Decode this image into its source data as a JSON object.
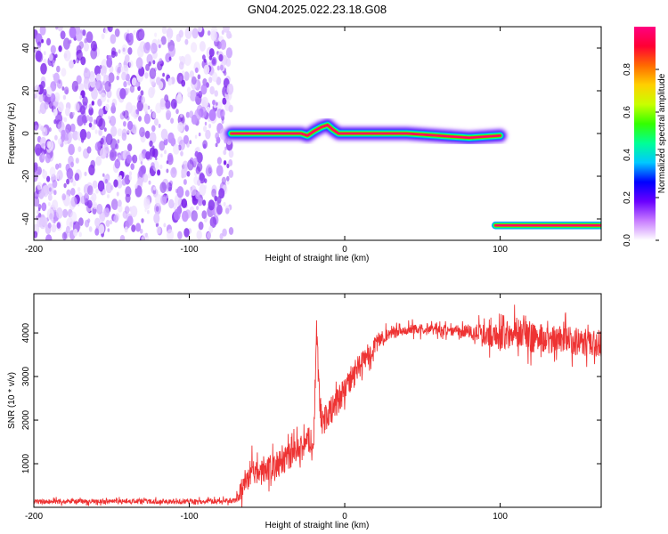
{
  "title": "GN04.2025.022.23.18.G08",
  "colorbar": {
    "label": "Normalized spectral amplitude",
    "ticks": [
      0.0,
      0.2,
      0.4,
      0.6,
      0.8
    ],
    "tick_labels": [
      "0.0",
      "0.2",
      "0.4",
      "0.6",
      "0.8"
    ],
    "stops": [
      "#ffffff",
      "#c87dff",
      "#6a00ff",
      "#0000ff",
      "#00c8ff",
      "#00ff96",
      "#33ff00",
      "#c8ff00",
      "#ffd000",
      "#ff6a00",
      "#ff0033",
      "#ff0080"
    ]
  },
  "chart_data": [
    {
      "type": "heatmap",
      "xlabel": "Height of straight line (km)",
      "ylabel": "Frequency (Hz)",
      "xlim": [
        -200,
        165
      ],
      "ylim": [
        -50,
        50
      ],
      "xticks": [
        -200,
        -100,
        0,
        100
      ],
      "xtick_labels": [
        "-200",
        "-100",
        "0",
        "100"
      ],
      "yticks": [
        -40,
        -20,
        0,
        20,
        40
      ],
      "ytick_labels": [
        "-40",
        "-20",
        "0",
        "20",
        "40"
      ],
      "noise_region": {
        "x": [
          -200,
          -73
        ],
        "y": [
          -50,
          50
        ],
        "amplitude_range": [
          0.0,
          0.1
        ]
      },
      "tracks": [
        {
          "x_range": [
            -73,
            100
          ],
          "points": [
            [
              -73,
              0
            ],
            [
              -50,
              0
            ],
            [
              -35,
              0
            ],
            [
              -28,
              0
            ],
            [
              -24,
              -1
            ],
            [
              -20,
              1
            ],
            [
              -15,
              3
            ],
            [
              -11,
              4
            ],
            [
              -8,
              2
            ],
            [
              -4,
              0
            ],
            [
              0,
              0
            ],
            [
              20,
              0
            ],
            [
              40,
              0
            ],
            [
              60,
              -1
            ],
            [
              80,
              -2
            ],
            [
              100,
              -1
            ]
          ],
          "core_amplitude": 1.0,
          "halo_amplitude": 0.35
        },
        {
          "x_range": [
            97,
            165
          ],
          "points": [
            [
              97,
              -43
            ],
            [
              120,
              -43
            ],
            [
              140,
              -43
            ],
            [
              165,
              -43
            ]
          ],
          "core_amplitude": 1.0,
          "halo_amplitude": 0.35
        }
      ]
    },
    {
      "type": "line",
      "xlabel": "Height of straight line (km)",
      "ylabel": "SNR (10 * v/v)",
      "xlim": [
        -200,
        165
      ],
      "ylim": [
        0,
        4900
      ],
      "xticks": [
        -200,
        -100,
        0,
        100
      ],
      "xtick_labels": [
        "-200",
        "-100",
        "0",
        "100"
      ],
      "yticks": [
        1000,
        2000,
        3000,
        4000
      ],
      "ytick_labels": [
        "1000",
        "2000",
        "3000",
        "4000"
      ],
      "color": "#ee3333",
      "series": [
        {
          "x": [
            -200,
            -180,
            -160,
            -140,
            -120,
            -100,
            -80,
            -70,
            -65,
            -60,
            -55,
            -50,
            -45,
            -40,
            -35,
            -30,
            -25,
            -20,
            -18,
            -15,
            -10,
            -5,
            0,
            5,
            10,
            15,
            20,
            25,
            30,
            35,
            40,
            50,
            60,
            70,
            80,
            90,
            100,
            110,
            120,
            130,
            140,
            150,
            160,
            165
          ],
          "y": [
            130,
            130,
            135,
            130,
            135,
            130,
            140,
            150,
            500,
            850,
            750,
            900,
            950,
            1050,
            1150,
            1300,
            1450,
            1650,
            3900,
            1900,
            2150,
            2400,
            2700,
            3000,
            3250,
            3500,
            3750,
            3900,
            4000,
            4050,
            4080,
            4080,
            4080,
            4050,
            4050,
            3950,
            3900,
            4050,
            3900,
            3850,
            3850,
            3800,
            3750,
            3750
          ],
          "spread": [
            70,
            70,
            70,
            70,
            70,
            70,
            70,
            80,
            400,
            400,
            350,
            350,
            350,
            350,
            350,
            400,
            400,
            400,
            400,
            400,
            400,
            400,
            400,
            400,
            350,
            300,
            250,
            200,
            150,
            150,
            150,
            150,
            150,
            150,
            200,
            300,
            400,
            450,
            450,
            400,
            400,
            400,
            400,
            400
          ]
        }
      ]
    }
  ]
}
